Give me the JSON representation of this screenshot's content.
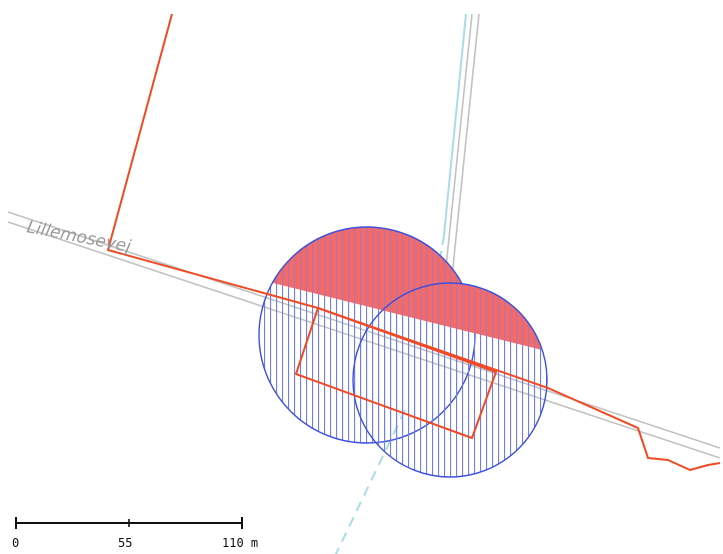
{
  "map": {
    "road_name": "Lillemosevej",
    "scale_bar": {
      "labels": [
        "0",
        "55",
        "110 m"
      ]
    },
    "colors": {
      "background": "#ffffff",
      "parcel_line": "#f04a24",
      "road_casing": "#b9b9b9",
      "watercourse": "#a9dcea",
      "buffer_outline": "#3b4fe0",
      "buffer_hatch": "#6f7fe6",
      "highlight_fill": "#f26a6a",
      "scale_bar": "#111111"
    }
  }
}
